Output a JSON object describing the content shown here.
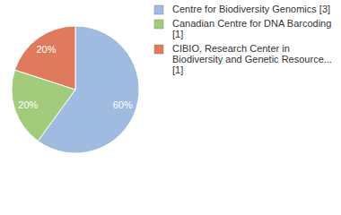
{
  "chart_data": {
    "type": "pie",
    "categories": [
      "Centre for Biodiversity Genomics [3]",
      "Canadian Centre for DNA Barcoding [1]",
      "CIBIO, Research Center in Biodiversity and Genetic Resource... [1]"
    ],
    "values": [
      60,
      20,
      20
    ],
    "value_labels": [
      "60%",
      "20%",
      "20%"
    ],
    "colors": [
      "#9fbbe0",
      "#a2cc7b",
      "#df7a5c"
    ],
    "data_labels": true,
    "legend": "top-right"
  }
}
